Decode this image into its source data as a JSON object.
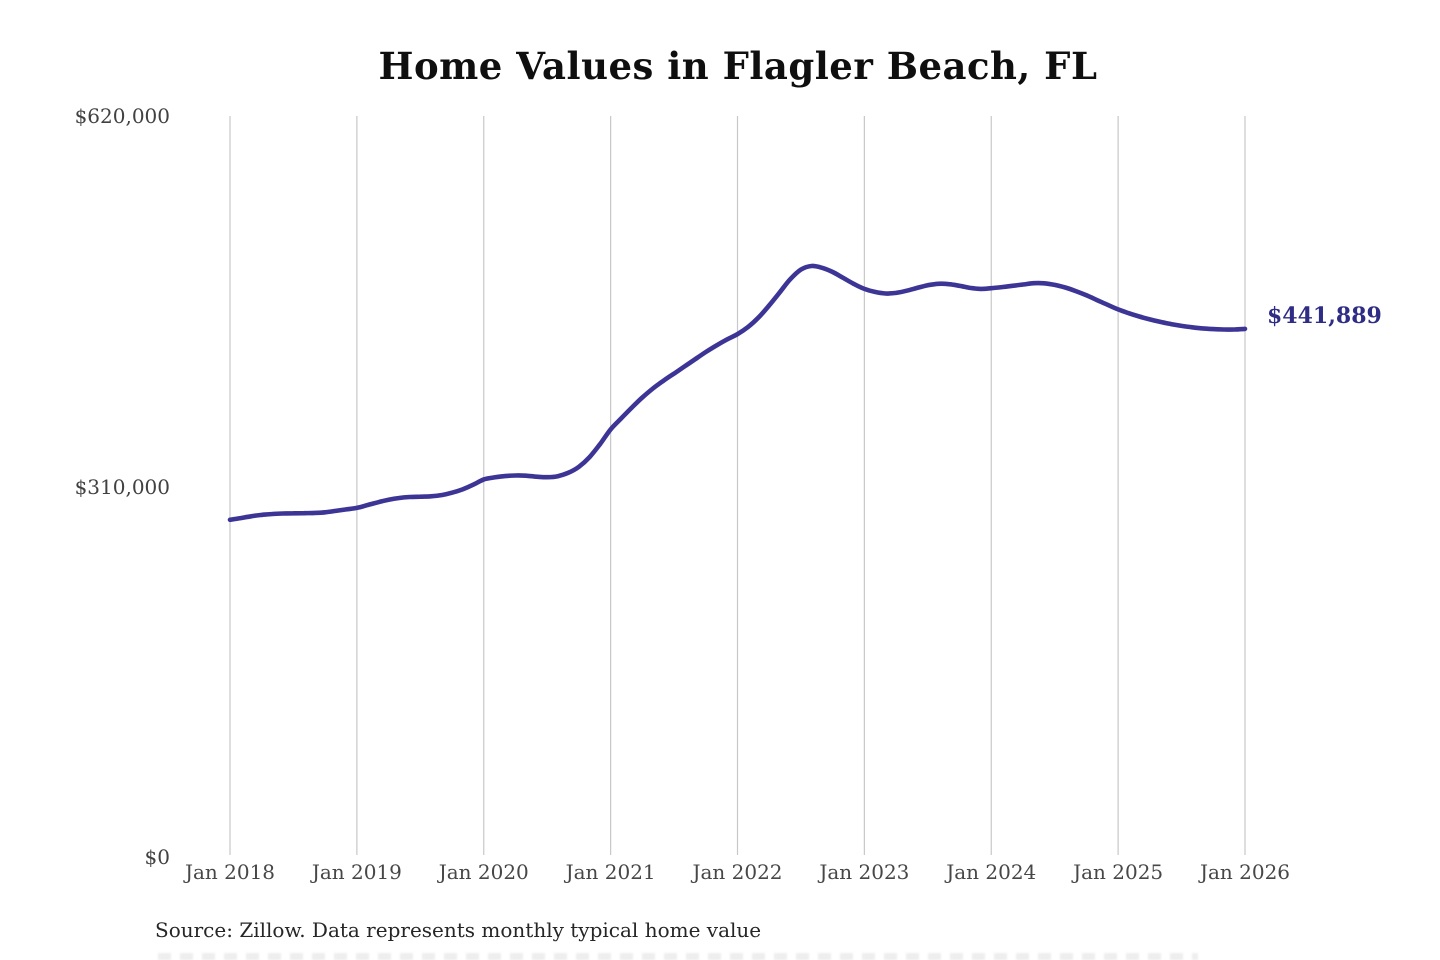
{
  "chart": {
    "title": "Home Values in Flagler Beach, FL",
    "end_label": "$441,889",
    "source": "Source: Zillow. Data represents monthly typical home value",
    "colors": {
      "line": "#3d3596",
      "end_label": "#2f2c85",
      "grid": "#c8c8c8",
      "title": "#0f0f0f",
      "y_tick_text": "#414141",
      "x_tick_text": "#474747",
      "source_text": "#262626",
      "background": "#ffffff"
    }
  },
  "chart_data": {
    "type": "line",
    "title": "Home Values in Flagler Beach, FL",
    "xlabel": "",
    "ylabel": "",
    "ylim": [
      0,
      620000
    ],
    "grid": "vertical-only",
    "legend": "none",
    "x_tick_labels": [
      "Jan 2018",
      "Jan 2019",
      "Jan 2020",
      "Jan 2021",
      "Jan 2022",
      "Jan 2023",
      "Jan 2024",
      "Jan 2025",
      "Jan 2026"
    ],
    "y_ticks": [
      {
        "label": "$620,000",
        "value": 620000
      },
      {
        "label": "$310,000",
        "value": 310000
      },
      {
        "label": "$0",
        "value": 0
      }
    ],
    "annotation": {
      "text": "$441,889",
      "value": 441889,
      "position": "line-end"
    },
    "series": [
      {
        "name": "Monthly typical home value",
        "x_start": "2018-01",
        "x_end": "2026-01",
        "interval": "monthly",
        "values": [
          282100,
          283600,
          285100,
          286200,
          287000,
          287400,
          287600,
          287700,
          287900,
          288400,
          289600,
          290800,
          292100,
          294400,
          296800,
          298900,
          300400,
          301200,
          301500,
          301800,
          302800,
          304800,
          307600,
          311500,
          315900,
          317600,
          318700,
          319200,
          319000,
          318200,
          317800,
          318600,
          321500,
          326500,
          334500,
          345500,
          357800,
          367000,
          376000,
          384500,
          392000,
          398500,
          404500,
          410500,
          416500,
          422500,
          428000,
          433000,
          437500,
          443500,
          451500,
          461500,
          472500,
          483500,
          491500,
          494500,
          493000,
          489500,
          484500,
          479500,
          475300,
          472800,
          471500,
          472000,
          473800,
          476200,
          478400,
          479600,
          479300,
          477900,
          476200,
          475300,
          475900,
          476800,
          477900,
          479000,
          480100,
          480000,
          478700,
          476500,
          473500,
          470000,
          466000,
          462000,
          458200,
          455000,
          452200,
          449800,
          447700,
          445900,
          444400,
          443200,
          442300,
          441700,
          441400,
          441400,
          441889
        ]
      }
    ]
  }
}
